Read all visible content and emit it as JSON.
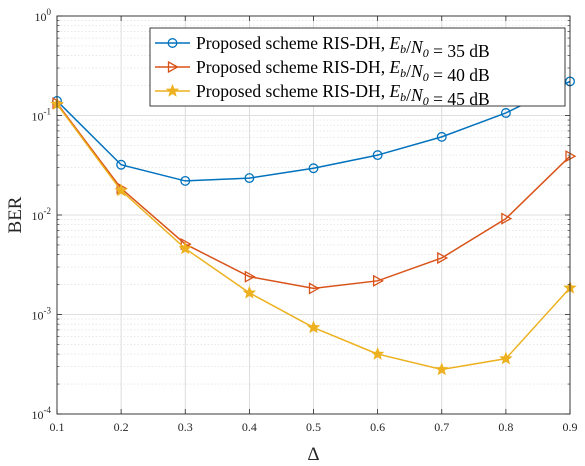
{
  "chart_data": {
    "type": "line",
    "title": "",
    "xlabel": "Δ",
    "ylabel": "BER",
    "x_scale": "linear",
    "y_scale": "log",
    "xlim": [
      0.1,
      0.9
    ],
    "ylim": [
      0.0001,
      1
    ],
    "x_ticks": [
      "0.1",
      "0.2",
      "0.3",
      "0.4",
      "0.5",
      "0.6",
      "0.7",
      "0.8",
      "0.9"
    ],
    "y_ticks": [
      {
        "base": "10",
        "exp": "-4",
        "value": 0.0001
      },
      {
        "base": "10",
        "exp": "-3",
        "value": 0.001
      },
      {
        "base": "10",
        "exp": "-2",
        "value": 0.01
      },
      {
        "base": "10",
        "exp": "-1",
        "value": 0.1
      },
      {
        "base": "10",
        "exp": "0",
        "value": 1
      }
    ],
    "grid": true,
    "minor_grid": true,
    "legend_position": "top-right",
    "x": [
      0.1,
      0.2,
      0.3,
      0.4,
      0.5,
      0.6,
      0.7,
      0.8,
      0.9
    ],
    "series": [
      {
        "legend_prefix": "Proposed scheme RIS-DH, ",
        "legend_math": "Eb/N0",
        "legend_suffix": " = 35 dB",
        "color": "#0072BD",
        "marker": "circle",
        "values": [
          0.14,
          0.032,
          0.022,
          0.0235,
          0.0295,
          0.04,
          0.061,
          0.106,
          0.22
        ]
      },
      {
        "legend_prefix": "Proposed scheme RIS-DH, ",
        "legend_math": "Eb/N0",
        "legend_suffix": " = 40 dB",
        "color": "#D95319",
        "marker": "triangle-right",
        "values": [
          0.133,
          0.0185,
          0.0051,
          0.0024,
          0.00183,
          0.00218,
          0.0037,
          0.0092,
          0.039
        ]
      },
      {
        "legend_prefix": "Proposed scheme RIS-DH, ",
        "legend_math": "Eb/N0",
        "legend_suffix": " = 45 dB",
        "color": "#EDB120",
        "marker": "star",
        "values": [
          0.13,
          0.0176,
          0.0046,
          0.00165,
          0.00074,
          0.0004,
          0.00028,
          0.00036,
          0.00185
        ]
      }
    ]
  }
}
